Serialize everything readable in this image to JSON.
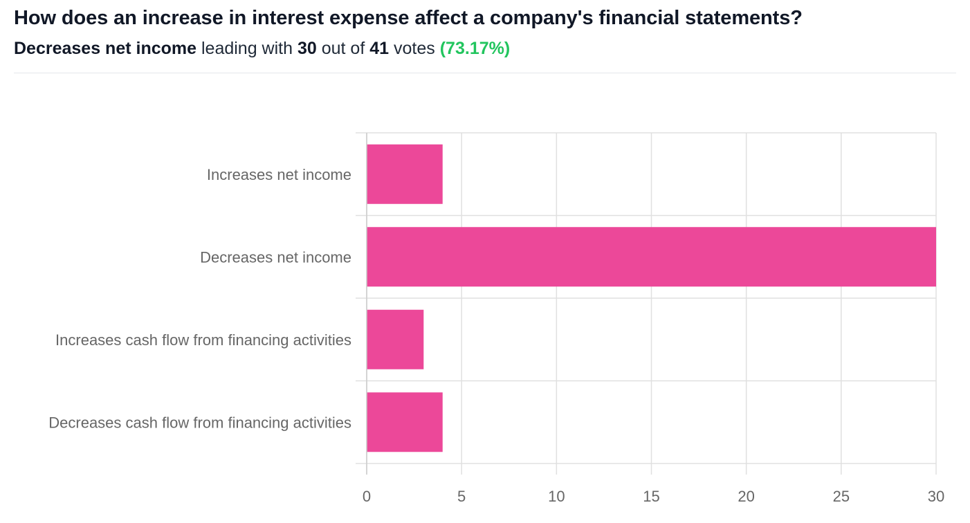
{
  "header": {
    "question": "How does an increase in interest expense affect a company's financial statements?",
    "leader": "Decreases net income",
    "leading_text": "leading with",
    "leader_votes": "30",
    "out_of_text": "out of",
    "total_votes": "41",
    "votes_text": "votes",
    "leader_percent": "(73.17%)"
  },
  "colors": {
    "bar": "#ec4899",
    "grid": "#e0e0e0",
    "percent": "#22c55e"
  },
  "chart_data": {
    "type": "bar",
    "orientation": "horizontal",
    "title": "",
    "xlabel": "",
    "ylabel": "",
    "categories": [
      "Increases net income",
      "Decreases net income",
      "Increases cash flow from financing activities",
      "Decreases cash flow from financing activities"
    ],
    "values": [
      4,
      30,
      3,
      4
    ],
    "xlim": [
      0,
      30
    ],
    "x_ticks": [
      "0",
      "5",
      "10",
      "15",
      "20",
      "25",
      "30"
    ],
    "grid": true,
    "legend": "none"
  }
}
